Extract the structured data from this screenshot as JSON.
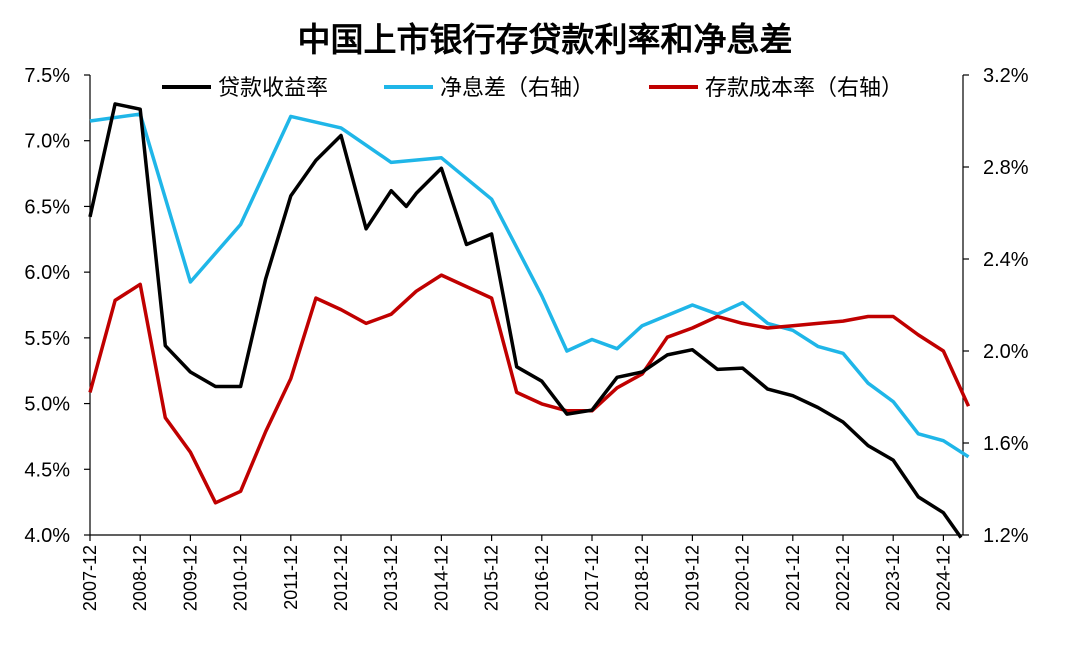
{
  "chart_data": {
    "type": "line",
    "title": "中国上市银行存贷款利率和净息差",
    "y_left": {
      "ylim": [
        4.0,
        7.5
      ],
      "ticks": [
        "4.0%",
        "4.5%",
        "5.0%",
        "5.5%",
        "6.0%",
        "6.5%",
        "7.0%",
        "7.5%"
      ]
    },
    "y_right": {
      "ylim": [
        1.2,
        3.2
      ],
      "ticks": [
        "1.2%",
        "1.6%",
        "2.0%",
        "2.4%",
        "2.8%",
        "3.2%"
      ]
    },
    "x_ticks": [
      "2007-12",
      "2008-12",
      "2009-12",
      "2010-12",
      "2011-12",
      "2012-12",
      "2013-12",
      "2014-12",
      "2015-12",
      "2016-12",
      "2017-12",
      "2018-12",
      "2019-12",
      "2020-12",
      "2021-12",
      "2022-12",
      "2023-12",
      "2024-12"
    ],
    "legend": [
      "贷款收益率",
      "净息差（右轴）",
      "存款成本率（右轴）"
    ],
    "series": [
      {
        "name": "贷款收益率",
        "axis": "left",
        "color": "#000000",
        "points": [
          [
            0,
            6.42
          ],
          [
            0.5,
            7.28
          ],
          [
            1,
            7.24
          ],
          [
            1.5,
            5.44
          ],
          [
            2,
            5.24
          ],
          [
            2.5,
            5.13
          ],
          [
            3,
            5.13
          ],
          [
            3.5,
            5.95
          ],
          [
            4,
            6.58
          ],
          [
            4.5,
            6.85
          ],
          [
            5,
            7.04
          ],
          [
            5.5,
            6.33
          ],
          [
            6,
            6.62
          ],
          [
            6.3,
            6.5
          ],
          [
            6.5,
            6.6
          ],
          [
            7,
            6.79
          ],
          [
            7.5,
            6.21
          ],
          [
            8,
            6.29
          ],
          [
            8.5,
            5.28
          ],
          [
            9,
            5.17
          ],
          [
            9.5,
            4.92
          ],
          [
            10,
            4.95
          ],
          [
            10.5,
            5.2
          ],
          [
            11,
            5.24
          ],
          [
            11.5,
            5.37
          ],
          [
            12,
            5.41
          ],
          [
            12.5,
            5.26
          ],
          [
            13,
            5.27
          ],
          [
            13.5,
            5.11
          ],
          [
            14,
            5.06
          ],
          [
            14.5,
            4.97
          ],
          [
            15,
            4.86
          ],
          [
            15.5,
            4.68
          ],
          [
            16,
            4.57
          ],
          [
            16.5,
            4.29
          ],
          [
            17,
            4.17
          ],
          [
            17.35,
            3.98
          ]
        ]
      },
      {
        "name": "净息差（右轴）",
        "axis": "right",
        "color": "#1fb6e8",
        "points": [
          [
            0,
            3.0
          ],
          [
            1,
            3.03
          ],
          [
            2,
            2.3
          ],
          [
            3,
            2.55
          ],
          [
            4,
            3.02
          ],
          [
            5,
            2.97
          ],
          [
            6,
            2.82
          ],
          [
            7,
            2.84
          ],
          [
            8,
            2.66
          ],
          [
            9,
            2.24
          ],
          [
            9.5,
            2.0
          ],
          [
            10,
            2.05
          ],
          [
            10.5,
            2.01
          ],
          [
            11,
            2.11
          ],
          [
            12,
            2.2
          ],
          [
            12.5,
            2.16
          ],
          [
            13,
            2.21
          ],
          [
            13.5,
            2.12
          ],
          [
            14,
            2.09
          ],
          [
            14.5,
            2.02
          ],
          [
            15,
            1.99
          ],
          [
            15.5,
            1.86
          ],
          [
            16,
            1.78
          ],
          [
            16.5,
            1.64
          ],
          [
            17,
            1.61
          ],
          [
            17.5,
            1.54
          ]
        ]
      },
      {
        "name": "存款成本率（右轴）",
        "axis": "right",
        "color": "#c00000",
        "points": [
          [
            0,
            1.82
          ],
          [
            0.5,
            2.22
          ],
          [
            1,
            2.29
          ],
          [
            1.5,
            1.71
          ],
          [
            2,
            1.56
          ],
          [
            2.5,
            1.34
          ],
          [
            3,
            1.39
          ],
          [
            3.5,
            1.65
          ],
          [
            4,
            1.88
          ],
          [
            4.5,
            2.23
          ],
          [
            5,
            2.18
          ],
          [
            5.5,
            2.12
          ],
          [
            6,
            2.16
          ],
          [
            6.5,
            2.26
          ],
          [
            7,
            2.33
          ],
          [
            7.5,
            2.28
          ],
          [
            8,
            2.23
          ],
          [
            8.5,
            1.82
          ],
          [
            9,
            1.77
          ],
          [
            9.5,
            1.74
          ],
          [
            10,
            1.74
          ],
          [
            10.5,
            1.84
          ],
          [
            11,
            1.9
          ],
          [
            11.5,
            2.06
          ],
          [
            12,
            2.1
          ],
          [
            12.5,
            2.15
          ],
          [
            13,
            2.12
          ],
          [
            13.5,
            2.1
          ],
          [
            14,
            2.11
          ],
          [
            14.5,
            2.12
          ],
          [
            15,
            2.13
          ],
          [
            15.5,
            2.15
          ],
          [
            16,
            2.15
          ],
          [
            16.5,
            2.07
          ],
          [
            17,
            2.0
          ],
          [
            17.5,
            1.76
          ]
        ]
      }
    ]
  }
}
